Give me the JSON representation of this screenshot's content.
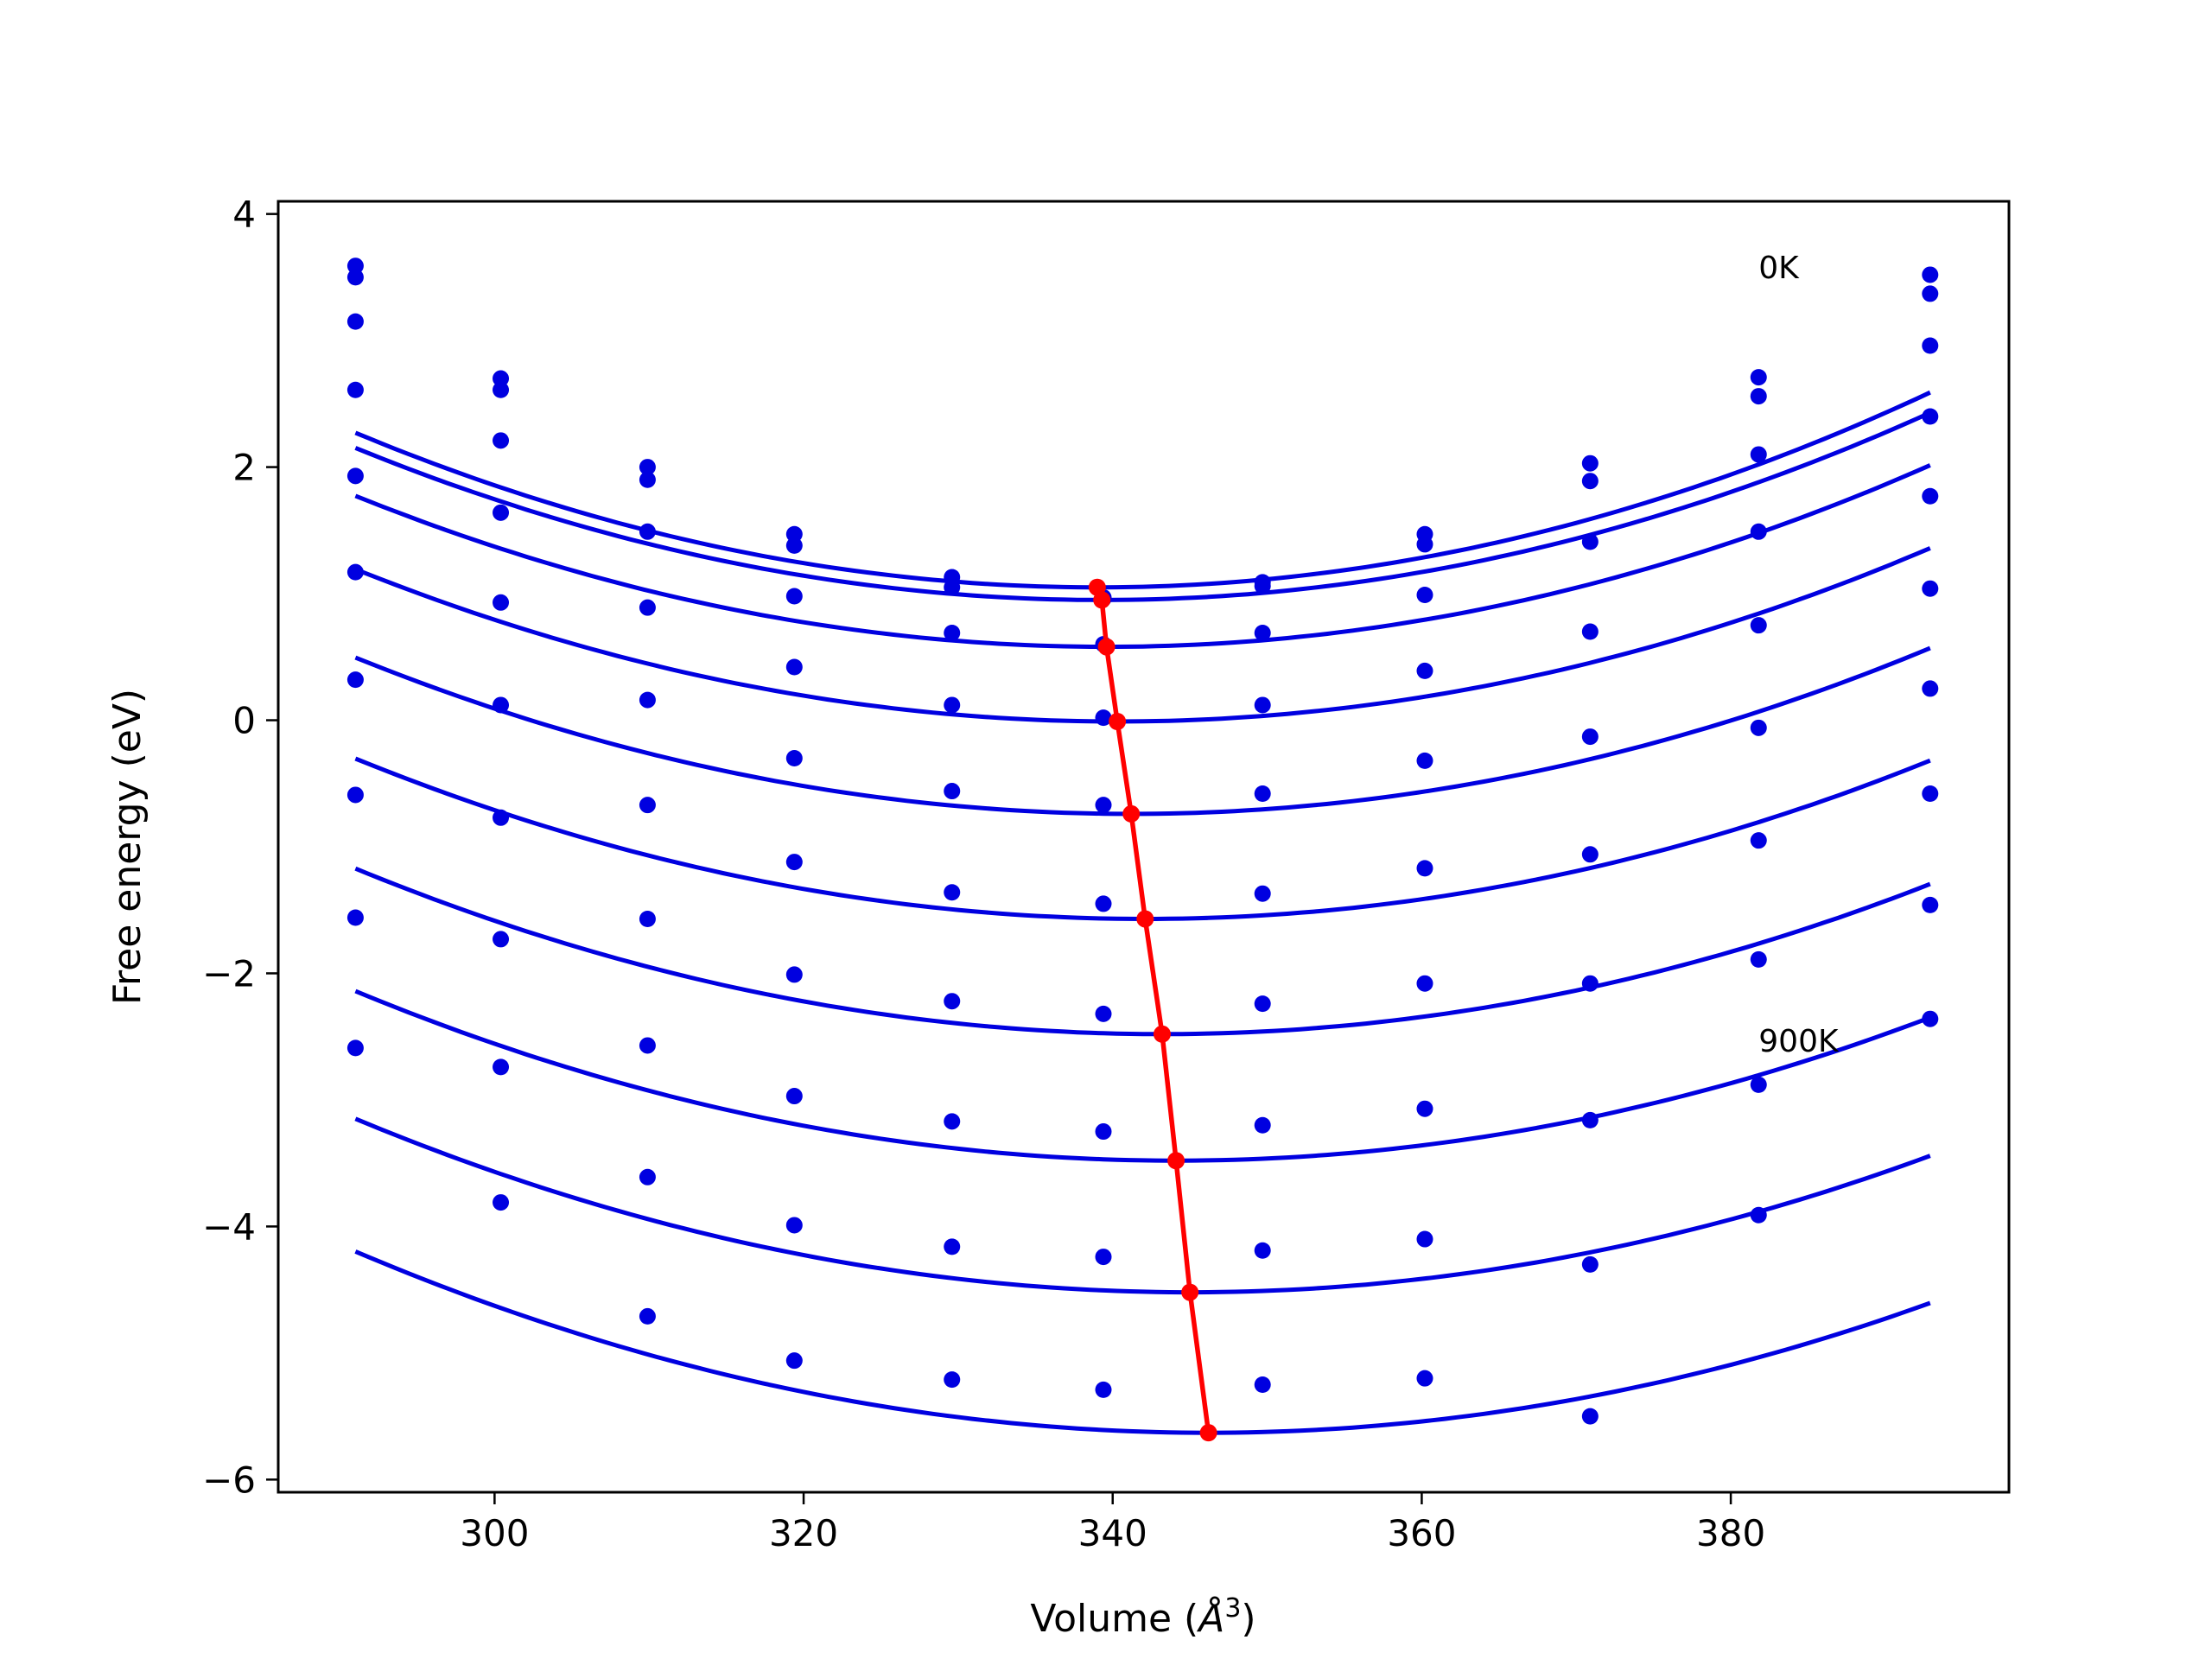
{
  "chart_data": {
    "type": "line",
    "xlabel": "Volume",
    "xlabel_unit": "Å",
    "xlabel_sup": "3",
    "ylabel": "Free energy (eV)",
    "xlim": [
      286,
      398
    ],
    "ylim": [
      -6.1,
      4.1
    ],
    "xticks": [
      300,
      320,
      340,
      360,
      380
    ],
    "yticks": [
      4,
      2,
      0,
      -2,
      -4,
      -6
    ],
    "ytick_labels": [
      "4",
      "2",
      "0",
      "−2",
      "−4",
      "−6"
    ],
    "annotations": [
      {
        "text": "0K",
        "x": 381.8,
        "y": 3.58
      },
      {
        "text": "900K",
        "x": 381.8,
        "y": -2.53
      }
    ],
    "volumes": [
      291.0,
      300.4,
      309.9,
      319.4,
      329.6,
      339.4,
      349.7,
      360.2,
      370.9,
      381.8,
      392.9
    ],
    "curves": [
      {
        "min_v": 339.0,
        "min_e": 1.05,
        "k": 0.00053,
        "data": [
          3.59,
          2.7,
          2.0,
          1.47,
          1.13,
          0.97,
          1.09,
          1.47,
          2.03,
          2.71,
          3.52
        ]
      },
      {
        "min_v": 339.3,
        "min_e": 0.95,
        "k": 0.000515,
        "data": [
          3.5,
          2.61,
          1.9,
          1.38,
          1.05,
          0.96,
          1.06,
          1.39,
          1.89,
          2.56,
          3.37
        ]
      },
      {
        "min_v": 339.6,
        "min_e": 0.58,
        "k": 0.000505,
        "data": [
          3.15,
          2.21,
          1.49,
          0.98,
          0.69,
          0.6,
          0.69,
          0.99,
          1.41,
          2.1,
          2.96
        ]
      },
      {
        "min_v": 340.3,
        "min_e": -0.01,
        "k": 0.000495,
        "data": [
          2.61,
          1.64,
          0.89,
          0.42,
          0.12,
          0.02,
          0.12,
          0.39,
          0.7,
          1.49,
          2.4
        ]
      },
      {
        "min_v": 341.2,
        "min_e": -0.74,
        "k": 0.00049,
        "data": [
          1.93,
          0.93,
          0.16,
          -0.3,
          -0.56,
          -0.67,
          -0.58,
          -0.32,
          -0.13,
          0.75,
          1.77
        ]
      },
      {
        "min_v": 342.1,
        "min_e": -1.57,
        "k": 0.000485,
        "data": [
          1.17,
          0.12,
          -0.67,
          -1.12,
          -1.36,
          -1.45,
          -1.37,
          -1.17,
          -1.06,
          -0.06,
          1.04
        ]
      },
      {
        "min_v": 343.2,
        "min_e": -2.48,
        "k": 0.00048,
        "data": [
          0.32,
          -0.77,
          -1.57,
          -2.01,
          -2.22,
          -2.32,
          -2.24,
          -2.08,
          -2.08,
          -0.95,
          0.25
        ]
      },
      {
        "min_v": 344.1,
        "min_e": -3.48,
        "k": 0.000475,
        "data": [
          -0.59,
          -1.73,
          -2.57,
          -2.97,
          -3.17,
          -3.25,
          -3.2,
          -3.07,
          -3.16,
          -1.89,
          -0.58
        ]
      },
      {
        "min_v": 345.0,
        "min_e": -4.52,
        "k": 0.00047,
        "data": [
          -1.56,
          -2.74,
          -3.61,
          -3.99,
          -4.16,
          -4.24,
          -4.19,
          -4.1,
          -4.3,
          -2.88,
          -1.46
        ]
      },
      {
        "min_v": 346.2,
        "min_e": -5.63,
        "k": 0.00047,
        "data": [
          -2.59,
          -3.81,
          -4.71,
          -5.06,
          -5.21,
          -5.29,
          -5.25,
          -5.2,
          -5.5,
          -3.91,
          -2.36
        ]
      }
    ],
    "colors": {
      "fit": "#0000e0",
      "points": "#0000e0",
      "minima": "#ff0000"
    },
    "grid": false,
    "legend": false
  }
}
